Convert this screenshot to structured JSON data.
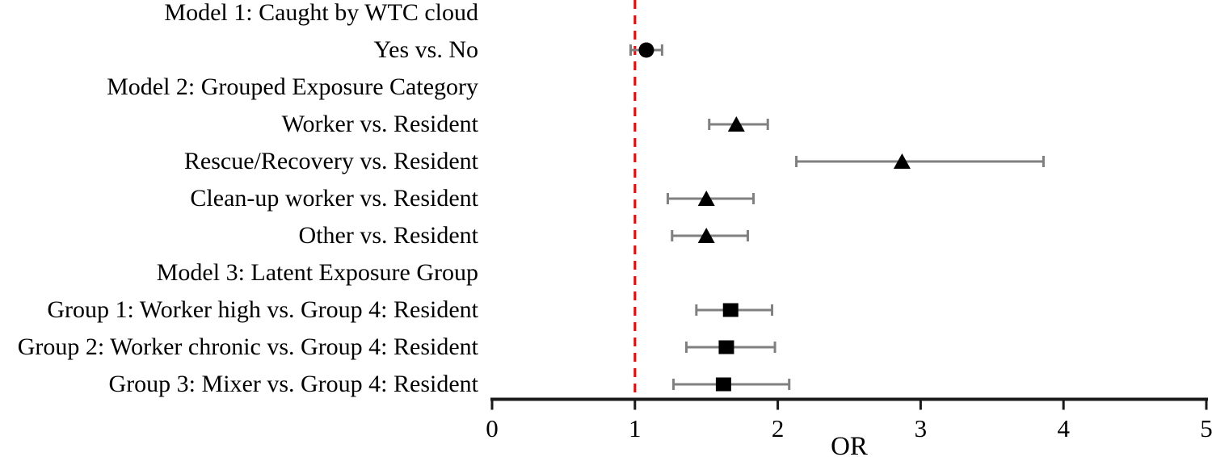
{
  "chart_data": {
    "type": "scatter",
    "subtype": "forest-plot",
    "title": "",
    "xlabel": "OR",
    "ylabel": "",
    "xlim": [
      0,
      5
    ],
    "xticks": [
      0,
      1,
      2,
      3,
      4,
      5
    ],
    "reference_line_x": 1,
    "grid": false,
    "legend": "none",
    "colors": {
      "marker": "#000000",
      "error_bar": "#808080",
      "axis": "#1a1a1a",
      "reference_line": "#ff0000"
    },
    "rows": [
      {
        "label": "Model 1: Caught by WTC cloud",
        "type": "header"
      },
      {
        "label": "Yes vs. No",
        "type": "estimate",
        "marker": "circle",
        "or": 1.08,
        "ci_low": 0.97,
        "ci_high": 1.19
      },
      {
        "label": "Model 2: Grouped Exposure Category",
        "type": "header"
      },
      {
        "label": "Worker vs. Resident",
        "type": "estimate",
        "marker": "triangle",
        "or": 1.71,
        "ci_low": 1.52,
        "ci_high": 1.93
      },
      {
        "label": "Rescue/Recovery vs. Resident",
        "type": "estimate",
        "marker": "triangle",
        "or": 2.87,
        "ci_low": 2.13,
        "ci_high": 3.86
      },
      {
        "label": "Clean-up worker vs. Resident",
        "type": "estimate",
        "marker": "triangle",
        "or": 1.5,
        "ci_low": 1.23,
        "ci_high": 1.83
      },
      {
        "label": "Other vs. Resident",
        "type": "estimate",
        "marker": "triangle",
        "or": 1.5,
        "ci_low": 1.26,
        "ci_high": 1.79
      },
      {
        "label": "Model 3: Latent Exposure Group",
        "type": "header"
      },
      {
        "label": "Group 1: Worker high vs. Group 4: Resident",
        "type": "estimate",
        "marker": "square",
        "or": 1.67,
        "ci_low": 1.43,
        "ci_high": 1.96
      },
      {
        "label": "Group 2: Worker chronic vs. Group 4: Resident",
        "type": "estimate",
        "marker": "square",
        "or": 1.64,
        "ci_low": 1.36,
        "ci_high": 1.98
      },
      {
        "label": "Group 3: Mixer vs. Group 4: Resident",
        "type": "estimate",
        "marker": "square",
        "or": 1.62,
        "ci_low": 1.27,
        "ci_high": 2.08
      }
    ]
  }
}
